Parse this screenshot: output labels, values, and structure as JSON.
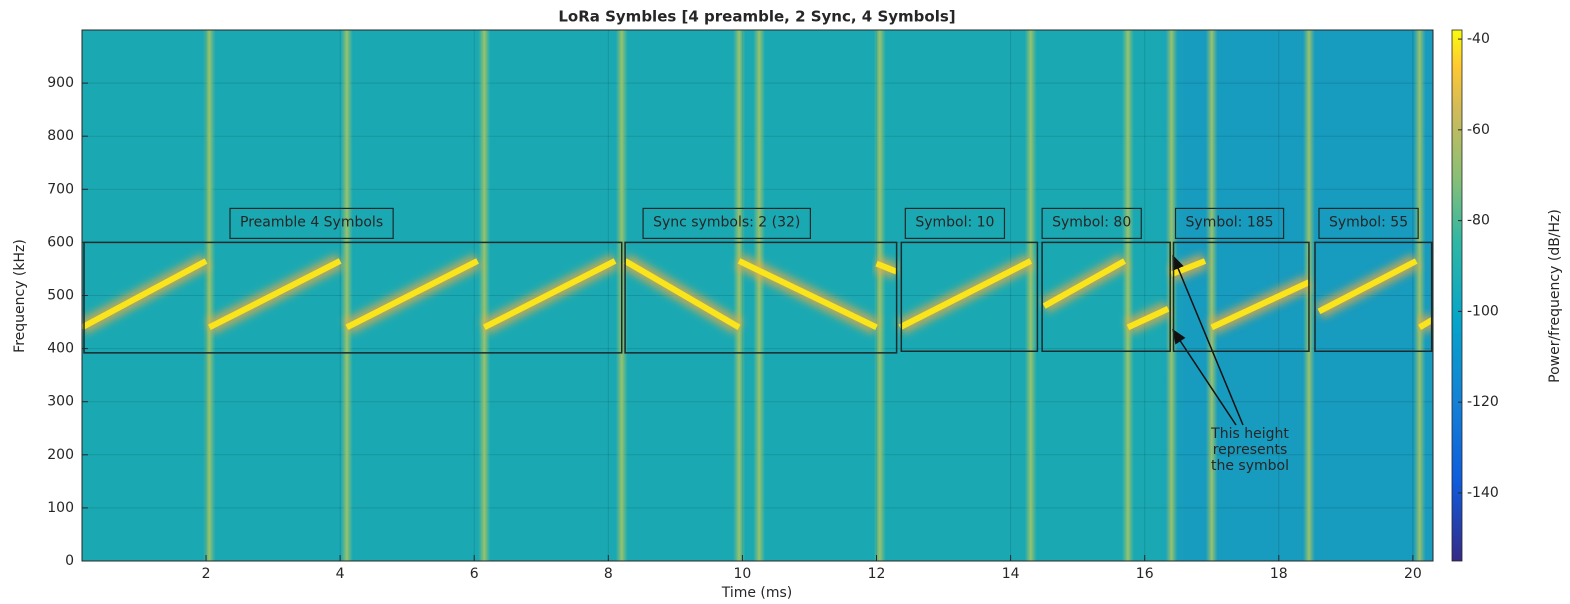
{
  "chart_data": {
    "type": "spectrogram",
    "title": "LoRa Symbles [4 preamble, 2 Sync, 4 Symbols]",
    "xlabel": "Time (ms)",
    "ylabel": "Frequency (kHz)",
    "colorbar_label": "Power/frequency (dB/Hz)",
    "xlim": [
      0.15,
      20.3
    ],
    "ylim": [
      0,
      1000
    ],
    "xticks": [
      2,
      4,
      6,
      8,
      10,
      12,
      14,
      16,
      18,
      20
    ],
    "yticks": [
      0,
      100,
      200,
      300,
      400,
      500,
      600,
      700,
      800,
      900
    ],
    "clim": [
      -155,
      -38
    ],
    "cticks": [
      -140,
      -120,
      -100,
      -80,
      -60,
      -40
    ],
    "grid": true,
    "background_color": "#1aa9b3",
    "chirp_color": "#fae41c",
    "chirps": [
      {
        "x": [
          0.15,
          2.0
        ],
        "y": [
          440,
          565
        ]
      },
      {
        "x": [
          2.05,
          4.0
        ],
        "y": [
          440,
          565
        ]
      },
      {
        "x": [
          4.1,
          6.05
        ],
        "y": [
          440,
          565
        ]
      },
      {
        "x": [
          6.15,
          8.1
        ],
        "y": [
          440,
          565
        ]
      },
      {
        "x": [
          8.25,
          9.95
        ],
        "y": [
          565,
          440
        ]
      },
      {
        "x": [
          9.95,
          12.0
        ],
        "y": [
          565,
          440
        ]
      },
      {
        "x": [
          12.0,
          12.3
        ],
        "y": [
          560,
          545
        ]
      },
      {
        "x": [
          12.35,
          14.3
        ],
        "y": [
          440,
          565
        ]
      },
      {
        "x": [
          14.5,
          15.7
        ],
        "y": [
          480,
          565
        ]
      },
      {
        "x": [
          15.75,
          16.35
        ],
        "y": [
          440,
          475
        ]
      },
      {
        "x": [
          16.4,
          16.9
        ],
        "y": [
          540,
          565
        ]
      },
      {
        "x": [
          17.0,
          18.45
        ],
        "y": [
          440,
          525
        ]
      },
      {
        "x": [
          18.6,
          20.05
        ],
        "y": [
          470,
          565
        ]
      },
      {
        "x": [
          20.1,
          20.3
        ],
        "y": [
          440,
          455
        ]
      }
    ],
    "transients": [
      2.05,
      4.1,
      6.15,
      8.2,
      9.95,
      10.25,
      12.05,
      14.3,
      15.75,
      16.4,
      17.0,
      18.45,
      20.1
    ],
    "regions": [
      {
        "label": "Preamble 4 Symbols",
        "x": [
          0.18,
          8.2
        ],
        "y": [
          392,
          600
        ]
      },
      {
        "label": "Sync symbols: 2 (32)",
        "x": [
          8.25,
          12.3
        ],
        "y": [
          392,
          600
        ]
      },
      {
        "label": "Symbol: 10",
        "x": [
          12.37,
          14.4
        ],
        "y": [
          395,
          600
        ]
      },
      {
        "label": "Symbol: 80",
        "x": [
          14.47,
          16.38
        ],
        "y": [
          395,
          600
        ]
      },
      {
        "label": "Symbol: 185",
        "x": [
          16.43,
          18.45
        ],
        "y": [
          395,
          600
        ]
      },
      {
        "label": "Symbol: 55",
        "x": [
          18.54,
          20.28
        ],
        "y": [
          395,
          600
        ]
      }
    ],
    "annotation": [
      "This height",
      "represents",
      "the symbol"
    ]
  }
}
